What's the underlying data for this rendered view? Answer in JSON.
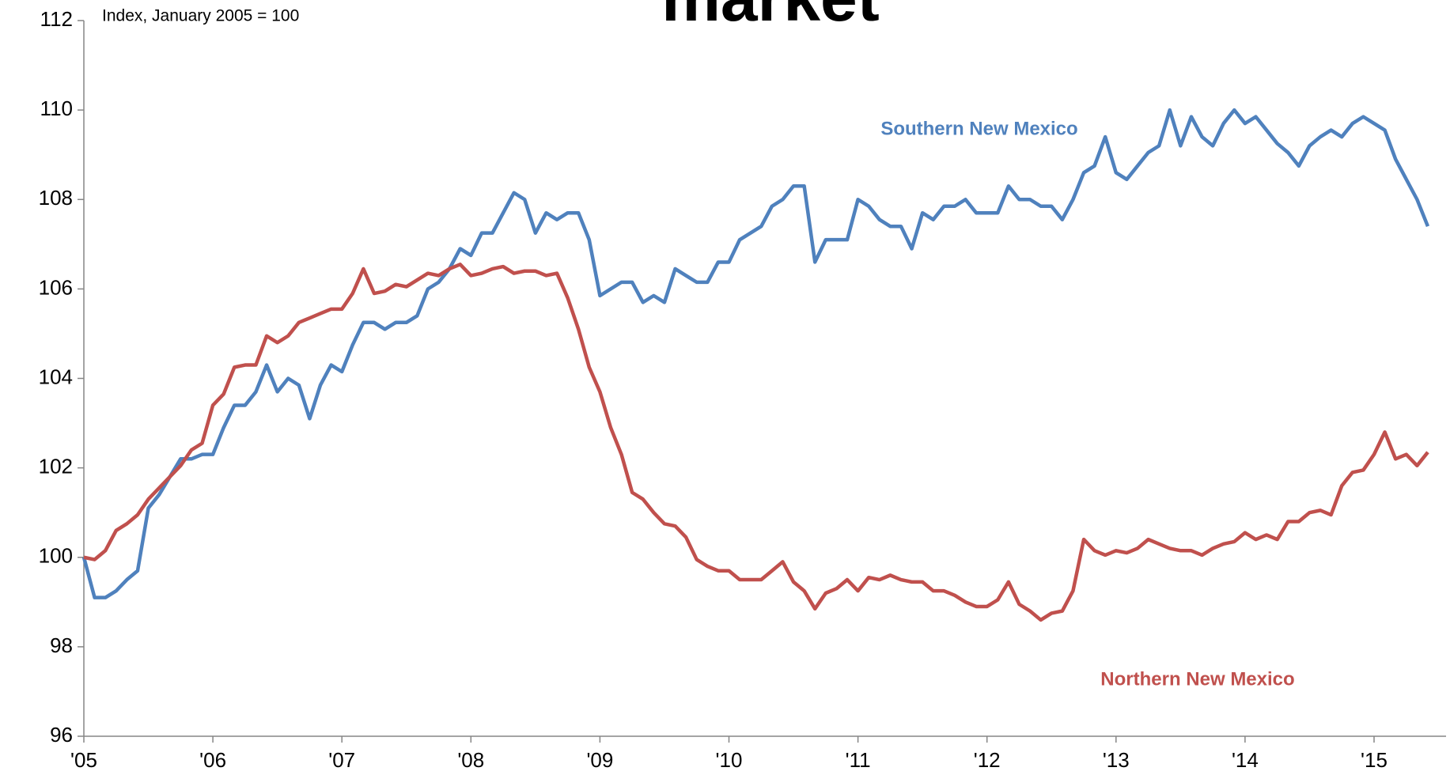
{
  "chart_data": {
    "type": "line",
    "title": "market",
    "subtitle": "Index, January 2005 = 100",
    "categories": [
      "'05",
      null,
      null,
      null,
      null,
      null,
      null,
      null,
      null,
      null,
      null,
      null,
      "'06",
      null,
      null,
      null,
      null,
      null,
      null,
      null,
      null,
      null,
      null,
      null,
      "'07",
      null,
      null,
      null,
      null,
      null,
      null,
      null,
      null,
      null,
      null,
      null,
      "'08",
      null,
      null,
      null,
      null,
      null,
      null,
      null,
      null,
      null,
      null,
      null,
      "'09",
      null,
      null,
      null,
      null,
      null,
      null,
      null,
      null,
      null,
      null,
      null,
      "'10",
      null,
      null,
      null,
      null,
      null,
      null,
      null,
      null,
      null,
      null,
      null,
      "'11",
      null,
      null,
      null,
      null,
      null,
      null,
      null,
      null,
      null,
      null,
      null,
      "'12",
      null,
      null,
      null,
      null,
      null,
      null,
      null,
      null,
      null,
      null,
      null,
      "'13",
      null,
      null,
      null,
      null,
      null,
      null,
      null,
      null,
      null,
      null,
      null,
      "'14",
      null,
      null,
      null,
      null,
      null,
      null,
      null,
      null,
      null,
      null,
      null,
      "'15",
      null,
      null,
      null,
      null,
      null
    ],
    "series": [
      {
        "name": "Southern New Mexico",
        "color": "#4f81bd",
        "values": [
          100,
          99.1,
          99.1,
          99.25,
          99.5,
          99.7,
          101.1,
          101.4,
          101.8,
          102.2,
          102.2,
          102.3,
          102.3,
          102.9,
          103.4,
          103.4,
          103.7,
          104.3,
          103.7,
          104.0,
          103.85,
          103.1,
          103.85,
          104.3,
          104.15,
          104.75,
          105.25,
          105.25,
          105.1,
          105.25,
          105.25,
          105.4,
          106.0,
          106.15,
          106.45,
          106.9,
          106.75,
          107.25,
          107.25,
          107.7,
          108.15,
          108.0,
          107.25,
          107.7,
          107.55,
          107.7,
          107.7,
          107.1,
          105.85,
          106.0,
          106.15,
          106.15,
          105.7,
          105.85,
          105.7,
          106.45,
          106.3,
          106.15,
          106.15,
          106.6,
          106.6,
          107.1,
          107.25,
          107.4,
          107.85,
          108.0,
          108.3,
          108.3,
          106.6,
          107.1,
          107.1,
          107.1,
          108.0,
          107.85,
          107.55,
          107.4,
          107.4,
          106.9,
          107.7,
          107.55,
          107.85,
          107.85,
          108.0,
          107.7,
          107.7,
          107.7,
          108.3,
          108.0,
          108.0,
          107.85,
          107.85,
          107.55,
          108.0,
          108.6,
          108.75,
          109.4,
          108.6,
          108.45,
          108.75,
          109.05,
          109.2,
          110.0,
          109.2,
          109.85,
          109.4,
          109.2,
          109.7,
          110.0,
          109.7,
          109.85,
          109.55,
          109.25,
          109.05,
          108.75,
          109.2,
          109.4,
          109.55,
          109.4,
          109.7,
          109.85,
          109.7,
          109.55,
          108.9,
          108.45,
          108.0,
          107.4
        ]
      },
      {
        "name": "Northern New Mexico",
        "color": "#c0504d",
        "values": [
          100,
          99.95,
          100.15,
          100.6,
          100.75,
          100.95,
          101.3,
          101.55,
          101.8,
          102.05,
          102.4,
          102.55,
          103.4,
          103.65,
          104.25,
          104.3,
          104.3,
          104.95,
          104.8,
          104.95,
          105.25,
          105.35,
          105.45,
          105.55,
          105.55,
          105.9,
          106.45,
          105.9,
          105.95,
          106.1,
          106.05,
          106.2,
          106.35,
          106.3,
          106.45,
          106.55,
          106.3,
          106.35,
          106.45,
          106.5,
          106.35,
          106.4,
          106.4,
          106.3,
          106.35,
          105.8,
          105.1,
          104.25,
          103.7,
          102.9,
          102.3,
          101.45,
          101.3,
          101.0,
          100.75,
          100.7,
          100.45,
          99.95,
          99.8,
          99.7,
          99.7,
          99.5,
          99.5,
          99.5,
          99.7,
          99.9,
          99.45,
          99.25,
          98.85,
          99.2,
          99.3,
          99.5,
          99.25,
          99.55,
          99.5,
          99.6,
          99.5,
          99.45,
          99.45,
          99.25,
          99.25,
          99.15,
          99.0,
          98.9,
          98.9,
          99.05,
          99.45,
          98.95,
          98.8,
          98.6,
          98.75,
          98.8,
          99.25,
          100.4,
          100.15,
          100.05,
          100.15,
          100.1,
          100.2,
          100.4,
          100.3,
          100.2,
          100.15,
          100.15,
          100.05,
          100.2,
          100.3,
          100.35,
          100.55,
          100.4,
          100.5,
          100.4,
          100.8,
          100.8,
          101.0,
          101.05,
          100.95,
          101.6,
          101.9,
          101.95,
          102.3,
          102.8,
          102.2,
          102.3,
          102.05,
          102.35
        ]
      }
    ],
    "ylim": [
      96,
      112
    ],
    "yticks": [
      96,
      98,
      100,
      102,
      104,
      106,
      108,
      110,
      112
    ]
  }
}
